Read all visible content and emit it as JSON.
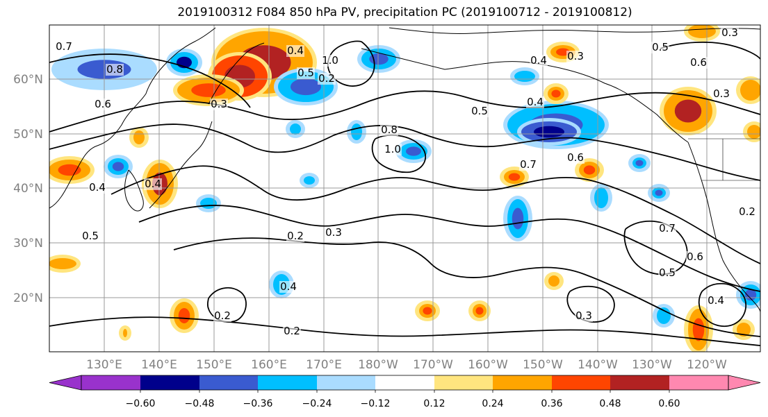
{
  "title": "2019100312 F084 850 hPa PV, precipitation PC (2019100712 - 2019100812)",
  "lat_labels": [
    "60°N",
    "50°N",
    "40°N",
    "30°N",
    "20°N"
  ],
  "lon_labels": [
    "130°E",
    "140°E",
    "150°E",
    "160°E",
    "170°E",
    "180°W",
    "170°W",
    "160°W",
    "150°W",
    "140°W",
    "130°W",
    "120°W"
  ],
  "colorbar": {
    "ticks": [
      "−0.60",
      "−0.48",
      "−0.36",
      "−0.24",
      "−0.12",
      "0.12",
      "0.24",
      "0.36",
      "0.48",
      "0.60"
    ],
    "colors": [
      "#9932cc",
      "#00008b",
      "#3a5bd0",
      "#00bfff",
      "#aadcff",
      "#ffffff",
      "#ffe57f",
      "#ffa500",
      "#ff4500",
      "#b22222",
      "#ff88b0"
    ]
  },
  "contour_labels": [
    "0.7",
    "0.8",
    "0.6",
    "0.3",
    "0.2",
    "1.0",
    "0.4",
    "0.5",
    "0.8",
    "0.4",
    "1.0",
    "0.5",
    "0.4",
    "0.7",
    "0.6",
    "0.3",
    "0.5",
    "0.6",
    "0.3",
    "0.3",
    "0.4",
    "0.5",
    "0.4",
    "0.3",
    "0.2",
    "0.4",
    "0.2",
    "0.2",
    "0.3",
    "0.7",
    "0.6",
    "0.5",
    "0.4",
    "0.2"
  ]
}
